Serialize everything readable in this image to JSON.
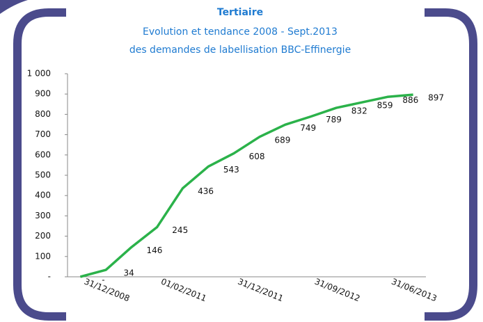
{
  "chart_data": {
    "type": "line",
    "title": "Tertiaire",
    "subtitle": [
      "Evolution et tendance 2008 - Sept.2013",
      "des demandes de labellisation BBC-Effinergie"
    ],
    "categories": [
      null,
      "31/12/2008",
      null,
      null,
      "01/02/2011",
      null,
      null,
      "31/12/2011",
      null,
      null,
      "31/09/2012",
      null,
      null,
      "31/06/2013"
    ],
    "values": [
      0,
      34,
      146,
      245,
      436,
      543,
      608,
      689,
      749,
      789,
      832,
      859,
      886,
      897
    ],
    "value_labels": [
      "-",
      "34",
      "146",
      "245",
      "436",
      "543",
      "608",
      "689",
      "749",
      "789",
      "832",
      "859",
      "886",
      "897"
    ],
    "color": "#2bb24a",
    "ylim": [
      0,
      1000
    ],
    "yticks": [
      {
        "value": 0,
        "label": "-"
      },
      100,
      200,
      300,
      400,
      500,
      600,
      700,
      800,
      900,
      {
        "value": 1000,
        "label": "1 000"
      }
    ]
  }
}
